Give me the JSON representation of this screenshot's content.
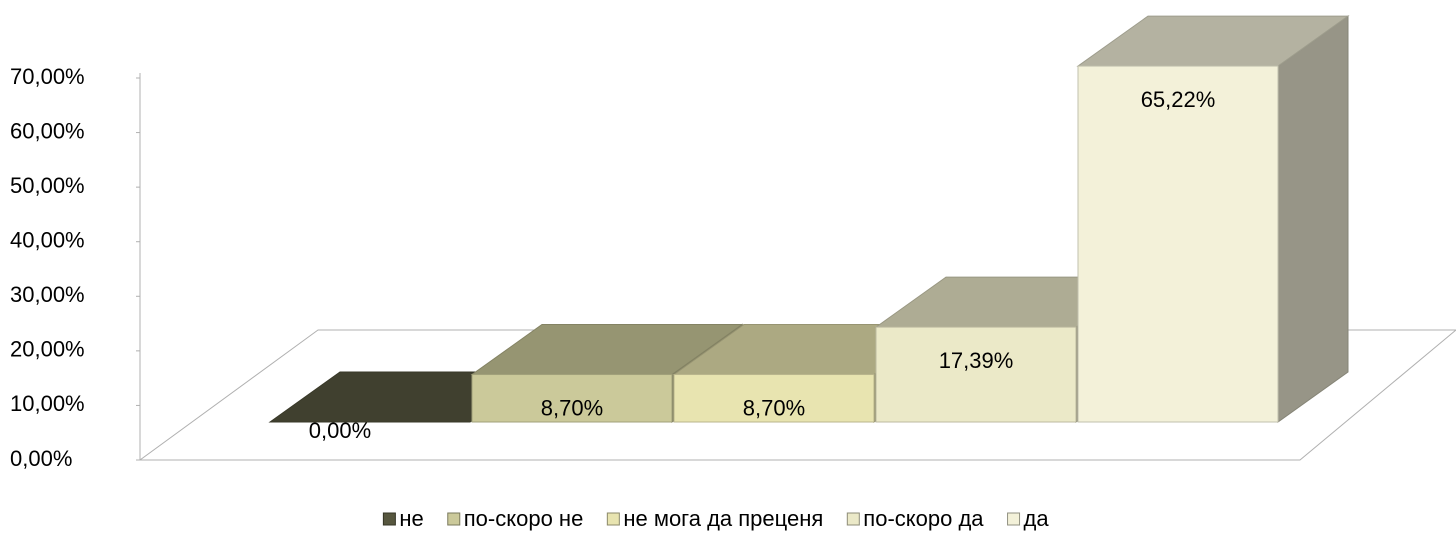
{
  "chart_data": {
    "type": "bar3d",
    "series": [
      {
        "name": "не",
        "color": "#57573f",
        "values": [
          0
        ],
        "value_labels": [
          "0,00%"
        ]
      },
      {
        "name": "по-скоро не",
        "color": "#cbc99a",
        "values": [
          8.7
        ],
        "value_labels": [
          "8,70%"
        ]
      },
      {
        "name": "не мога да преценя",
        "color": "#e8e4b0",
        "values": [
          8.7
        ],
        "value_labels": [
          "8,70%"
        ]
      },
      {
        "name": "по-скоро да",
        "color": "#ebe9c8",
        "values": [
          17.39
        ],
        "value_labels": [
          "17,39%"
        ]
      },
      {
        "name": "да",
        "color": "#f3f1d9",
        "values": [
          65.22
        ],
        "value_labels": [
          "65,22%"
        ]
      }
    ],
    "ylim": [
      0,
      70
    ],
    "yticks": [
      {
        "value": 0,
        "label": "0,00%"
      },
      {
        "value": 10,
        "label": "10,00%"
      },
      {
        "value": 20,
        "label": "20,00%"
      },
      {
        "value": 30,
        "label": "30,00%"
      },
      {
        "value": 40,
        "label": "40,00%"
      },
      {
        "value": 50,
        "label": "50,00%"
      },
      {
        "value": 60,
        "label": "60,00%"
      },
      {
        "value": 70,
        "label": "70,00%"
      }
    ],
    "legend": "bottom"
  }
}
